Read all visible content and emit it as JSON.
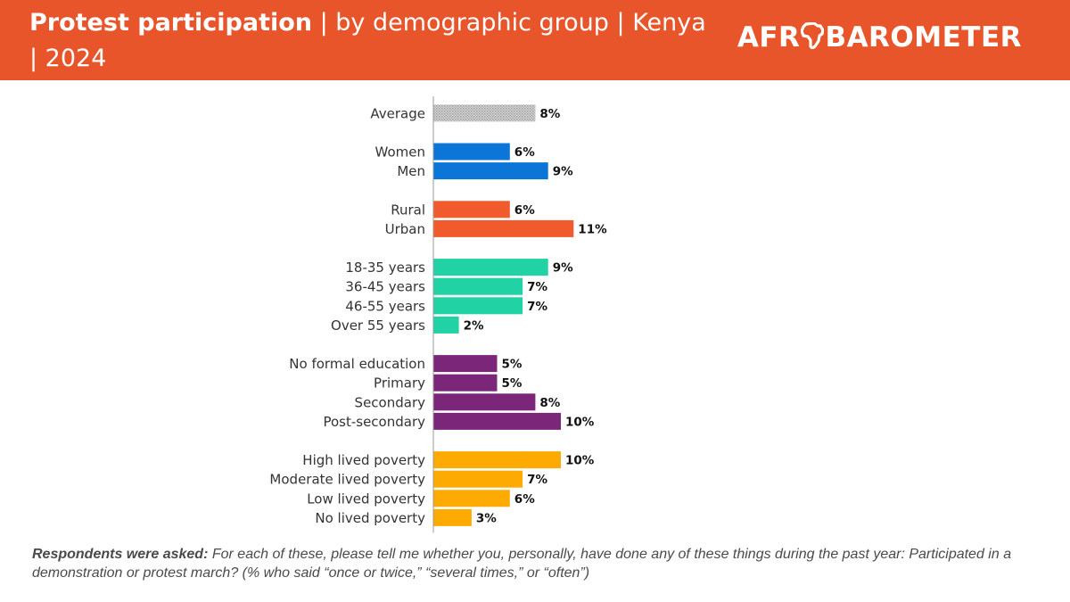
{
  "header": {
    "title_bold": "Protest participation",
    "title_rest": " | by demographic group | Kenya | 2024",
    "logo_prefix": "AFR",
    "logo_suffix": "BAROMETER"
  },
  "colors": {
    "header_bg": "#e8552a",
    "average": "#c8c8c8",
    "gender": "#0b76d8",
    "location": "#f05a2c",
    "age": "#21d3a4",
    "education": "#7b2679",
    "poverty": "#fdab03"
  },
  "chart_data": {
    "type": "bar",
    "orientation": "horizontal",
    "unit": "%",
    "groups": [
      {
        "color_key": "average",
        "pattern": "dotted",
        "items": [
          {
            "label": "Average",
            "value": 8
          }
        ]
      },
      {
        "color_key": "gender",
        "items": [
          {
            "label": "Women",
            "value": 6
          },
          {
            "label": "Men",
            "value": 9
          }
        ]
      },
      {
        "color_key": "location",
        "items": [
          {
            "label": "Rural",
            "value": 6
          },
          {
            "label": "Urban",
            "value": 11
          }
        ]
      },
      {
        "color_key": "age",
        "items": [
          {
            "label": "18-35 years",
            "value": 9
          },
          {
            "label": "36-45 years",
            "value": 7
          },
          {
            "label": "46-55 years",
            "value": 7
          },
          {
            "label": "Over 55 years",
            "value": 2
          }
        ]
      },
      {
        "color_key": "education",
        "items": [
          {
            "label": "No formal education",
            "value": 5
          },
          {
            "label": "Primary",
            "value": 5
          },
          {
            "label": "Secondary",
            "value": 8
          },
          {
            "label": "Post-secondary",
            "value": 10
          }
        ]
      },
      {
        "color_key": "poverty",
        "items": [
          {
            "label": "High lived poverty",
            "value": 10
          },
          {
            "label": "Moderate lived poverty",
            "value": 7
          },
          {
            "label": "Low lived poverty",
            "value": 6
          },
          {
            "label": "No lived poverty",
            "value": 3
          }
        ]
      }
    ]
  },
  "footnote": {
    "question_label": "Respondents were asked:",
    "question_text": " For each of these, please tell me whether you, personally, have done any of these things during the past year: Participated in a demonstration or protest march? (% who said “once or twice,” “several times,” or “often”)"
  }
}
